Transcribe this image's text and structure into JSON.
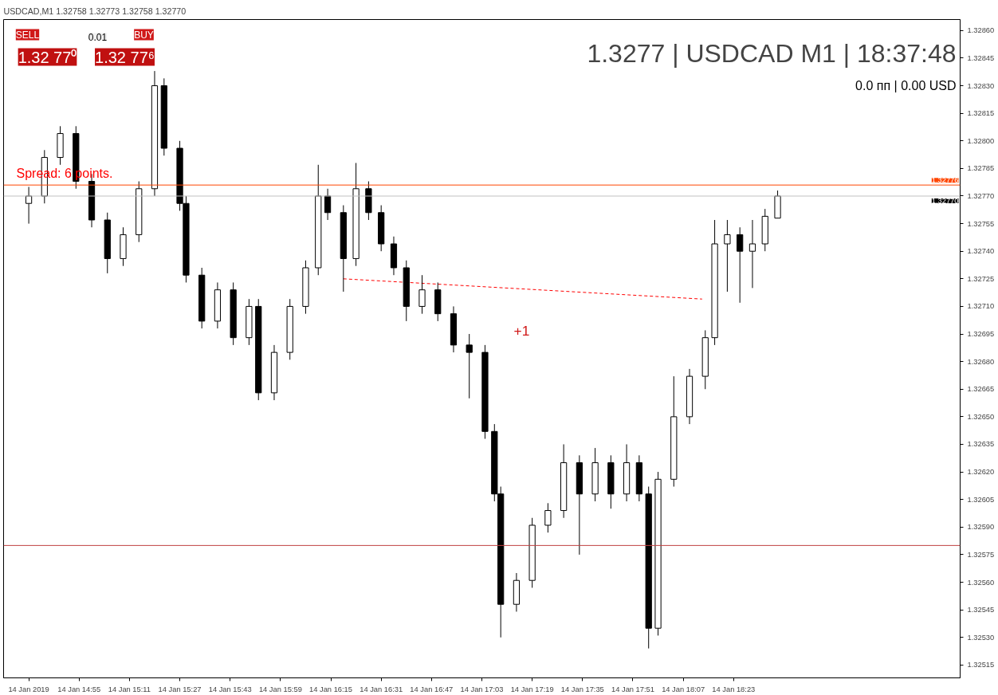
{
  "chart_data": {
    "type": "candlestick",
    "title": "USDCAD,M1  1.32758 1.32773 1.32758 1.32770",
    "subtitle": "1.3277 | USDCAD M1 | 18:37:48",
    "x": [
      "2019-01-14T14:39",
      "2019-01-14T14:44",
      "2019-01-14T14:49",
      "2019-01-14T14:54",
      "2019-01-14T14:59",
      "2019-01-14T15:04",
      "2019-01-14T15:09",
      "2019-01-14T15:14",
      "2019-01-14T15:19",
      "2019-01-14T15:22",
      "2019-01-14T15:27",
      "2019-01-14T15:29",
      "2019-01-14T15:34",
      "2019-01-14T15:39",
      "2019-01-14T15:44",
      "2019-01-14T15:49",
      "2019-01-14T15:52",
      "2019-01-14T15:57",
      "2019-01-14T16:02",
      "2019-01-14T16:07",
      "2019-01-14T16:11",
      "2019-01-14T16:14",
      "2019-01-14T16:19",
      "2019-01-14T16:23",
      "2019-01-14T16:27",
      "2019-01-14T16:31",
      "2019-01-14T16:35",
      "2019-01-14T16:39",
      "2019-01-14T16:44",
      "2019-01-14T16:49",
      "2019-01-14T16:54",
      "2019-01-14T16:59",
      "2019-01-14T17:04",
      "2019-01-14T17:07",
      "2019-01-14T17:09",
      "2019-01-14T17:14",
      "2019-01-14T17:19",
      "2019-01-14T17:24",
      "2019-01-14T17:29",
      "2019-01-14T17:34",
      "2019-01-14T17:39",
      "2019-01-14T17:44",
      "2019-01-14T17:49",
      "2019-01-14T17:53",
      "2019-01-14T17:56",
      "2019-01-14T17:59",
      "2019-01-14T18:04",
      "2019-01-14T18:09",
      "2019-01-14T18:14",
      "2019-01-14T18:17",
      "2019-01-14T18:21",
      "2019-01-14T18:25",
      "2019-01-14T18:29",
      "2019-01-14T18:33",
      "2019-01-14T18:37"
    ],
    "ohlc": [
      [
        1.32766,
        1.32775,
        1.32755,
        1.3277
      ],
      [
        1.3277,
        1.32795,
        1.32766,
        1.32791
      ],
      [
        1.32791,
        1.32808,
        1.32787,
        1.32804
      ],
      [
        1.32804,
        1.32808,
        1.32774,
        1.32778
      ],
      [
        1.32778,
        1.32782,
        1.32753,
        1.32757
      ],
      [
        1.32757,
        1.32761,
        1.32728,
        1.32736
      ],
      [
        1.32736,
        1.32753,
        1.32732,
        1.32749
      ],
      [
        1.32749,
        1.32778,
        1.32745,
        1.32774
      ],
      [
        1.32774,
        1.32838,
        1.3277,
        1.3283
      ],
      [
        1.3283,
        1.32834,
        1.32792,
        1.32796
      ],
      [
        1.32796,
        1.328,
        1.32762,
        1.32766
      ],
      [
        1.32766,
        1.3277,
        1.32723,
        1.32727
      ],
      [
        1.32727,
        1.32731,
        1.32698,
        1.32702
      ],
      [
        1.32702,
        1.32723,
        1.32698,
        1.32719
      ],
      [
        1.32719,
        1.32723,
        1.32689,
        1.32693
      ],
      [
        1.32693,
        1.32714,
        1.32689,
        1.3271
      ],
      [
        1.3271,
        1.32714,
        1.32659,
        1.32663
      ],
      [
        1.32663,
        1.32689,
        1.32659,
        1.32685
      ],
      [
        1.32685,
        1.32714,
        1.32681,
        1.3271
      ],
      [
        1.3271,
        1.32735,
        1.32706,
        1.32731
      ],
      [
        1.32731,
        1.32787,
        1.32727,
        1.3277
      ],
      [
        1.3277,
        1.32774,
        1.32757,
        1.32761
      ],
      [
        1.32761,
        1.32765,
        1.32718,
        1.32736
      ],
      [
        1.32736,
        1.32788,
        1.32732,
        1.32774
      ],
      [
        1.32774,
        1.32778,
        1.32757,
        1.32761
      ],
      [
        1.32761,
        1.32765,
        1.3274,
        1.32744
      ],
      [
        1.32744,
        1.32748,
        1.32727,
        1.32731
      ],
      [
        1.32731,
        1.32735,
        1.32702,
        1.3271
      ],
      [
        1.3271,
        1.32727,
        1.32706,
        1.32719
      ],
      [
        1.32719,
        1.32723,
        1.32702,
        1.32706
      ],
      [
        1.32706,
        1.3271,
        1.32685,
        1.32689
      ],
      [
        1.32689,
        1.32695,
        1.3266,
        1.32685
      ],
      [
        1.32685,
        1.32689,
        1.32638,
        1.32642
      ],
      [
        1.32642,
        1.32646,
        1.32604,
        1.32608
      ],
      [
        1.32608,
        1.32612,
        1.3253,
        1.32548
      ],
      [
        1.32548,
        1.32565,
        1.32544,
        1.32561
      ],
      [
        1.32561,
        1.32595,
        1.32557,
        1.32591
      ],
      [
        1.32591,
        1.32603,
        1.32587,
        1.32599
      ],
      [
        1.32599,
        1.32635,
        1.32595,
        1.32625
      ],
      [
        1.32625,
        1.32629,
        1.32575,
        1.32608
      ],
      [
        1.32608,
        1.32633,
        1.32604,
        1.32625
      ],
      [
        1.32625,
        1.32629,
        1.326,
        1.32608
      ],
      [
        1.32608,
        1.32635,
        1.32604,
        1.32625
      ],
      [
        1.32625,
        1.32629,
        1.32604,
        1.32608
      ],
      [
        1.32608,
        1.32612,
        1.32524,
        1.32535
      ],
      [
        1.32535,
        1.3262,
        1.32531,
        1.32616
      ],
      [
        1.32616,
        1.32672,
        1.32612,
        1.3265
      ],
      [
        1.3265,
        1.32676,
        1.32646,
        1.32672
      ],
      [
        1.32672,
        1.32697,
        1.32665,
        1.32693
      ],
      [
        1.32693,
        1.32757,
        1.32689,
        1.32744
      ],
      [
        1.32744,
        1.32757,
        1.32718,
        1.32749
      ],
      [
        1.32749,
        1.32753,
        1.32712,
        1.3274
      ],
      [
        1.3274,
        1.32757,
        1.3272,
        1.32744
      ],
      [
        1.32744,
        1.32763,
        1.3274,
        1.32759
      ],
      [
        1.32758,
        1.32773,
        1.32758,
        1.3277
      ]
    ],
    "series": [
      {
        "type": "line",
        "color": "#ff0000",
        "line_style": "dashed",
        "x": [
          "2019-01-14T16:19",
          "2019-01-14T18:13"
        ],
        "values": [
          1.32725,
          1.32714
        ]
      }
    ],
    "xlim": [
      "2019-01-14T14:31",
      "2019-01-14T19:35"
    ],
    "xticks": [
      {
        "value": "2019-01-14T14:39",
        "label": "14 Jan 2019"
      },
      {
        "value": "2019-01-14T14:55",
        "label": "14 Jan 14:55"
      },
      {
        "value": "2019-01-14T15:11",
        "label": "14 Jan 15:11"
      },
      {
        "value": "2019-01-14T15:27",
        "label": "14 Jan 15:27"
      },
      {
        "value": "2019-01-14T15:43",
        "label": "14 Jan 15:43"
      },
      {
        "value": "2019-01-14T15:59",
        "label": "14 Jan 15:59"
      },
      {
        "value": "2019-01-14T16:15",
        "label": "14 Jan 16:15"
      },
      {
        "value": "2019-01-14T16:31",
        "label": "14 Jan 16:31"
      },
      {
        "value": "2019-01-14T16:47",
        "label": "14 Jan 16:47"
      },
      {
        "value": "2019-01-14T17:03",
        "label": "14 Jan 17:03"
      },
      {
        "value": "2019-01-14T17:19",
        "label": "14 Jan 17:19"
      },
      {
        "value": "2019-01-14T17:35",
        "label": "14 Jan 17:35"
      },
      {
        "value": "2019-01-14T17:51",
        "label": "14 Jan 17:51"
      },
      {
        "value": "2019-01-14T18:07",
        "label": "14 Jan 18:07"
      },
      {
        "value": "2019-01-14T18:23",
        "label": "14 Jan 18:23"
      }
    ],
    "ylim": [
      1.32508,
      1.32866
    ],
    "yticks": [
      {
        "value": 1.32515,
        "label": "1.32515"
      },
      {
        "value": 1.3253,
        "label": "1.32530"
      },
      {
        "value": 1.32545,
        "label": "1.32545"
      },
      {
        "value": 1.3256,
        "label": "1.32560"
      },
      {
        "value": 1.32575,
        "label": "1.32575"
      },
      {
        "value": 1.3259,
        "label": "1.32590"
      },
      {
        "value": 1.32605,
        "label": "1.32605"
      },
      {
        "value": 1.3262,
        "label": "1.32620"
      },
      {
        "value": 1.32635,
        "label": "1.32635"
      },
      {
        "value": 1.3265,
        "label": "1.32650"
      },
      {
        "value": 1.32665,
        "label": "1.32665"
      },
      {
        "value": 1.3268,
        "label": "1.32680"
      },
      {
        "value": 1.32695,
        "label": "1.32695"
      },
      {
        "value": 1.3271,
        "label": "1.32710"
      },
      {
        "value": 1.32725,
        "label": "1.32725"
      },
      {
        "value": 1.3274,
        "label": "1.32740"
      },
      {
        "value": 1.32755,
        "label": "1.32755"
      },
      {
        "value": 1.3277,
        "label": "1.32770"
      },
      {
        "value": 1.32785,
        "label": "1.32785"
      },
      {
        "value": 1.328,
        "label": "1.32800"
      },
      {
        "value": 1.32815,
        "label": "1.32815"
      },
      {
        "value": 1.3283,
        "label": "1.32830"
      },
      {
        "value": 1.32845,
        "label": "1.32845"
      },
      {
        "value": 1.3286,
        "label": "1.32860"
      }
    ],
    "ref_lines": [
      {
        "axis": "y",
        "value": 1.32776,
        "label": "1.32776",
        "color": "#ff4500"
      },
      {
        "axis": "y",
        "value": 1.3277,
        "label": "1.32770",
        "color": "#c0c0c0"
      },
      {
        "axis": "y",
        "value": 1.3258,
        "color": "#c04040"
      }
    ],
    "annotations": [
      "0.0 пп | 0.00 USD",
      "Spread: 6 points.",
      "+1",
      "SELL",
      "0.01",
      "BUY",
      "1.32 77⁰",
      "1.32 77⁶"
    ],
    "grid": false
  }
}
